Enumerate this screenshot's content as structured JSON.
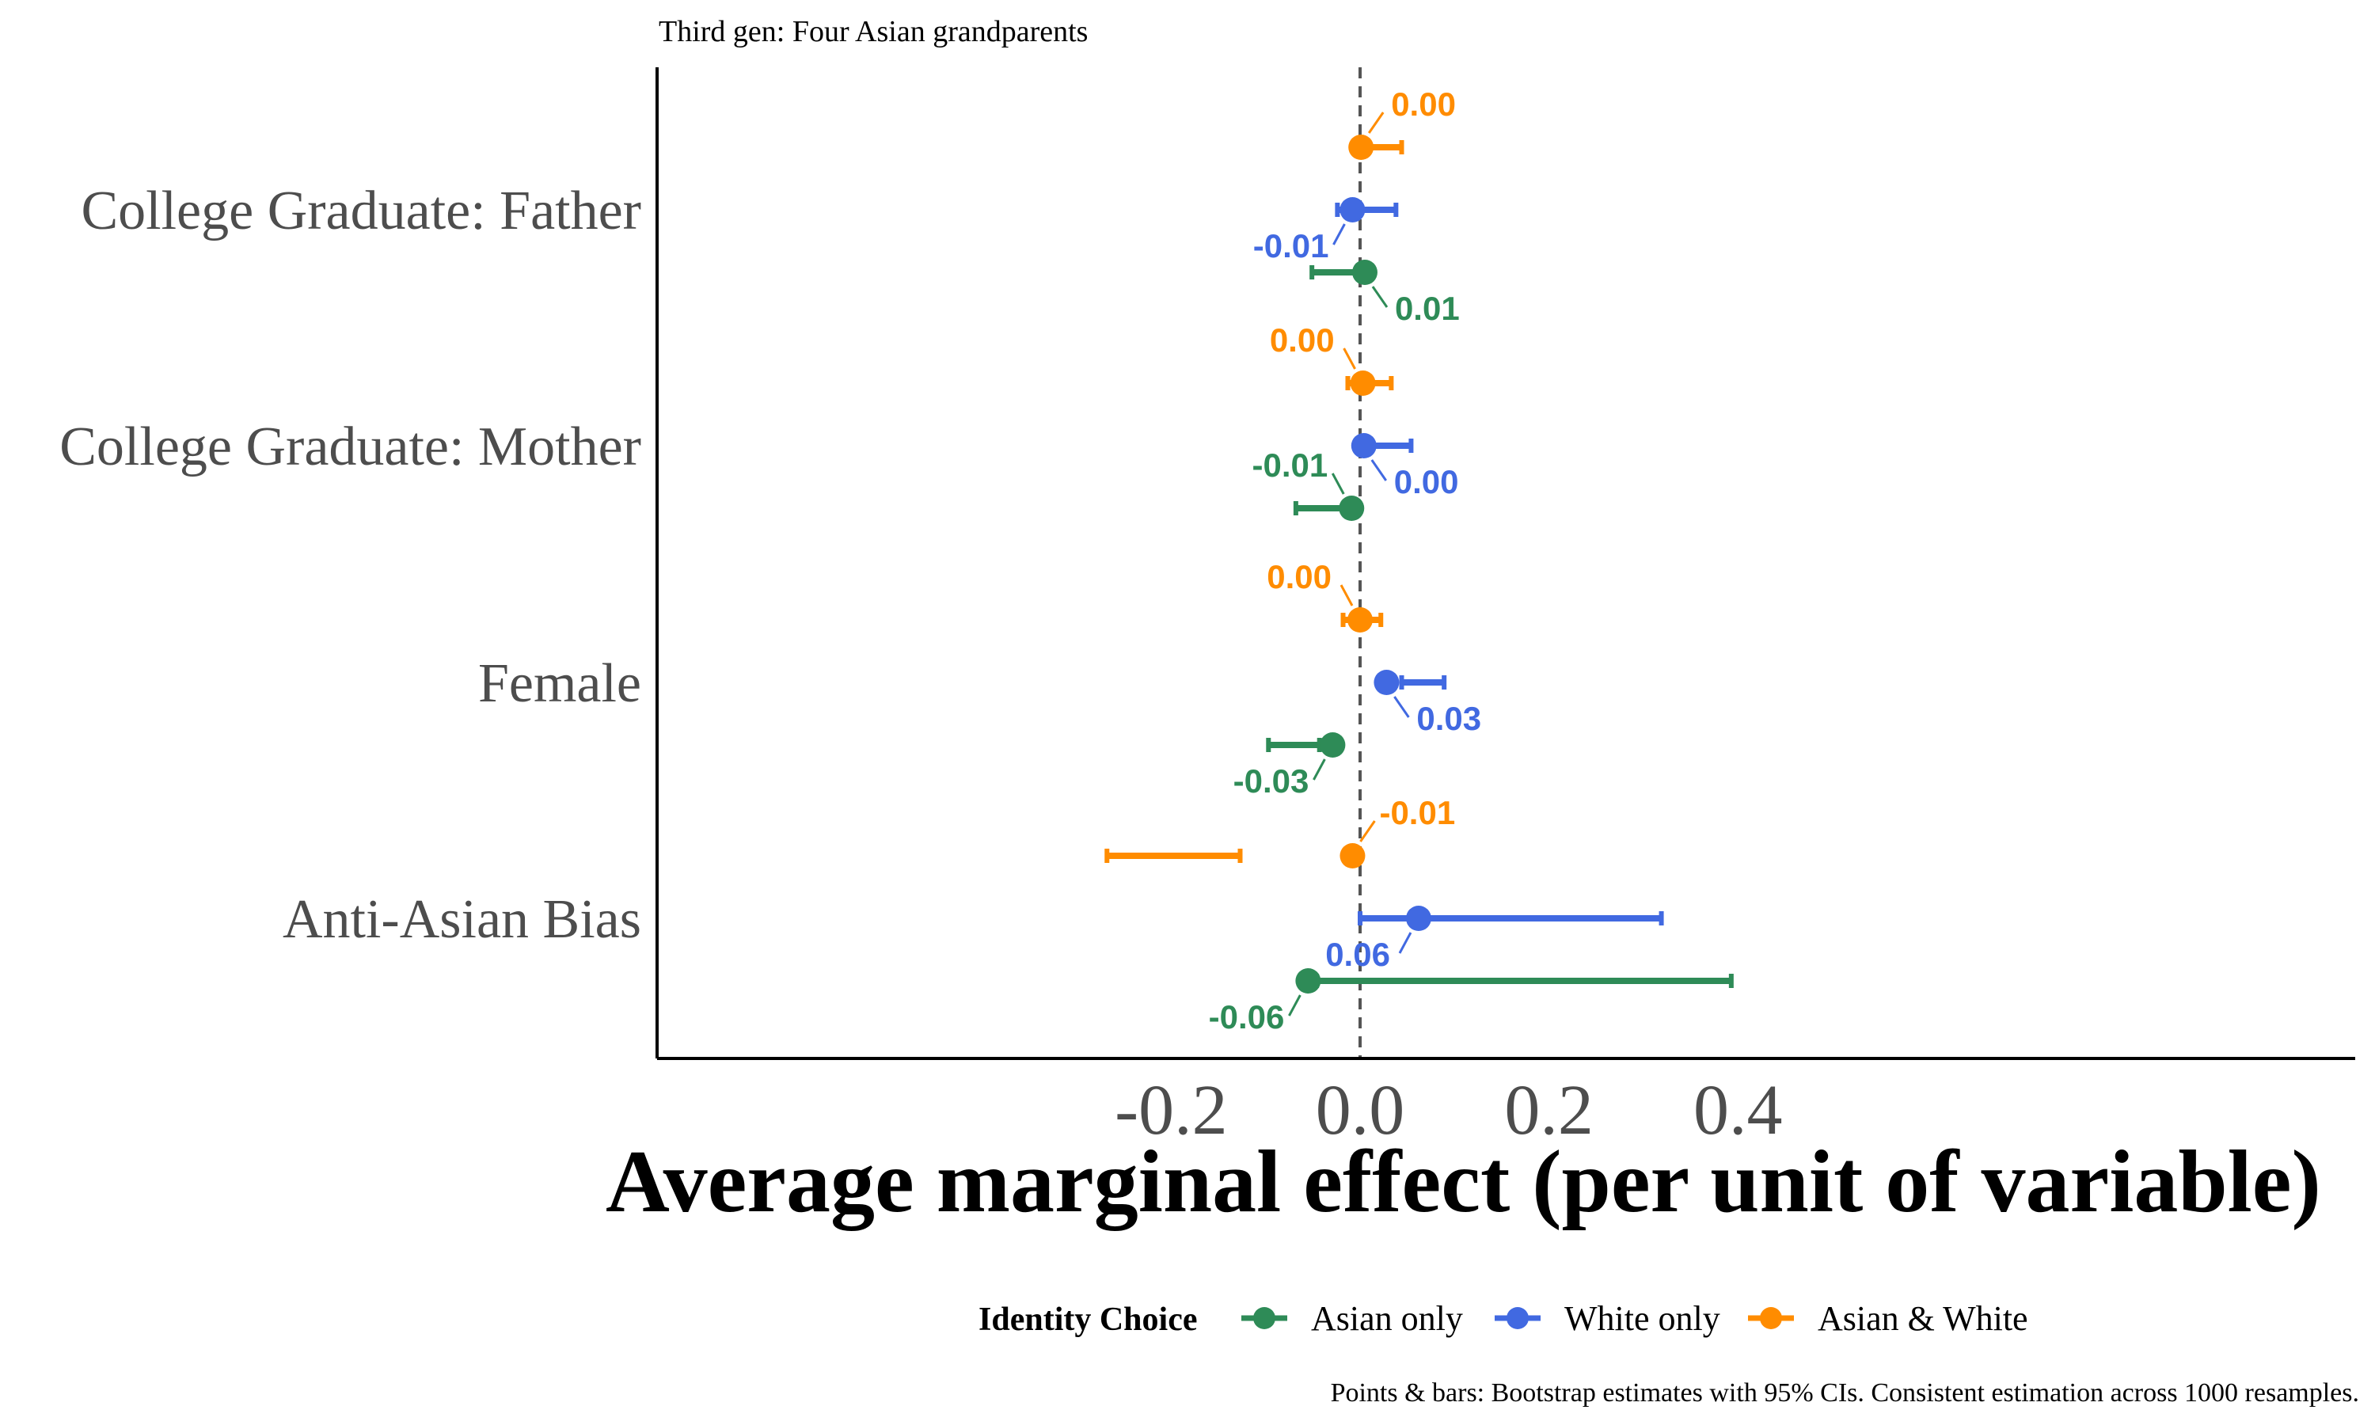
{
  "chart_data": {
    "type": "scatter",
    "subtitle": "Third gen: Four Asian grandparents",
    "xlabel": "Average marginal effect (per unit of variable)",
    "ylabel": "",
    "xlim": [
      -0.3,
      0.42
    ],
    "x_ticks": [
      "-0.2",
      "0.0",
      "0.2",
      "0.4"
    ],
    "x_tick_values": [
      -0.2,
      0.0,
      0.2,
      0.4
    ],
    "reference_line": 0,
    "grid": false,
    "categories": [
      "College Graduate: Father",
      "College Graduate: Mother",
      "Female",
      "Anti-Asian Bias"
    ],
    "series": [
      {
        "name": "Asian only",
        "color": "#2e8b57",
        "points": [
          {
            "category": "College Graduate: Father",
            "estimate": 0.005,
            "ci_low": -0.051,
            "ci_high": -0.002,
            "label": "0.01"
          },
          {
            "category": "College Graduate: Mother",
            "estimate": -0.009,
            "ci_low": -0.068,
            "ci_high": -0.01,
            "label": "-0.01"
          },
          {
            "category": "Female",
            "estimate": -0.029,
            "ci_low": -0.097,
            "ci_high": -0.043,
            "label": "-0.03"
          },
          {
            "category": "Anti-Asian Bias",
            "estimate": -0.055,
            "ci_low": -0.046,
            "ci_high": 0.393,
            "label": "-0.06"
          }
        ]
      },
      {
        "name": "White only",
        "color": "#4169e1",
        "points": [
          {
            "category": "College Graduate: Father",
            "estimate": -0.008,
            "ci_low": -0.024,
            "ci_high": 0.038,
            "label": "-0.01"
          },
          {
            "category": "College Graduate: Mother",
            "estimate": 0.004,
            "ci_low": 0.0,
            "ci_high": 0.054,
            "label": "0.00"
          },
          {
            "category": "Female",
            "estimate": 0.028,
            "ci_low": 0.044,
            "ci_high": 0.089,
            "label": "0.03"
          },
          {
            "category": "Anti-Asian Bias",
            "estimate": 0.062,
            "ci_low": 0.0,
            "ci_high": 0.319,
            "label": "0.06"
          }
        ]
      },
      {
        "name": "Asian & White",
        "color": "#ff8c00",
        "points": [
          {
            "category": "College Graduate: Father",
            "estimate": 0.001,
            "ci_low": 0.006,
            "ci_high": 0.044,
            "label": "0.00"
          },
          {
            "category": "College Graduate: Mother",
            "estimate": 0.003,
            "ci_low": -0.013,
            "ci_high": 0.033,
            "label": "0.00"
          },
          {
            "category": "Female",
            "estimate": 0.0,
            "ci_low": -0.018,
            "ci_high": 0.022,
            "label": "0.00"
          },
          {
            "category": "Anti-Asian Bias",
            "estimate": -0.008,
            "ci_low": -0.268,
            "ci_high": -0.127,
            "label": "-0.01"
          }
        ]
      }
    ],
    "legend": {
      "title": "Identity Choice",
      "position": "bottom",
      "items": [
        "Asian only",
        "White only",
        "Asian & White"
      ]
    },
    "caption": "Points & bars: Bootstrap estimates with 95% CIs. Consistent estimation across 1000 resamples."
  }
}
